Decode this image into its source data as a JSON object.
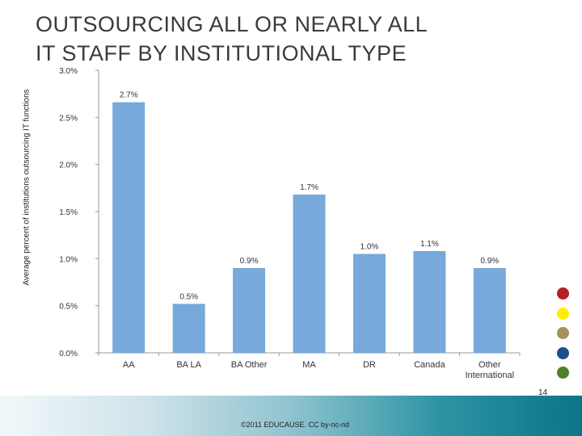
{
  "slide": {
    "title_line1": "OUTSOURCING ALL OR NEARLY ALL",
    "title_line2": "IT STAFF BY INSTITUTIONAL TYPE",
    "copyright": "©2011 EDUCAUSE. CC by-nc-nd",
    "page_number": "14",
    "dots": [
      "#b22222",
      "#ffee00",
      "#a8905a",
      "#1f4e8c",
      "#4f7f2a"
    ]
  },
  "chart_data": {
    "type": "bar",
    "title": "",
    "xlabel": "",
    "ylabel": "Average percent of institutions outsourcing IT functions",
    "categories": [
      "AA",
      "BA LA",
      "BA Other",
      "MA",
      "DR",
      "Canada",
      "Other International"
    ],
    "values": [
      2.66,
      0.52,
      0.9,
      1.68,
      1.05,
      1.08,
      0.9
    ],
    "data_labels": [
      "2.7%",
      "0.5%",
      "0.9%",
      "1.7%",
      "1.0%",
      "1.1%",
      "0.9%"
    ],
    "ylim": [
      0,
      3.0
    ],
    "yticks": [
      0,
      0.5,
      1.0,
      1.5,
      2.0,
      2.5,
      3.0
    ],
    "ytick_labels": [
      "0.0%",
      "0.5%",
      "1.0%",
      "1.5%",
      "2.0%",
      "2.5%",
      "3.0%"
    ],
    "bar_color": "#77a9da",
    "grid": false,
    "legend": "none"
  }
}
